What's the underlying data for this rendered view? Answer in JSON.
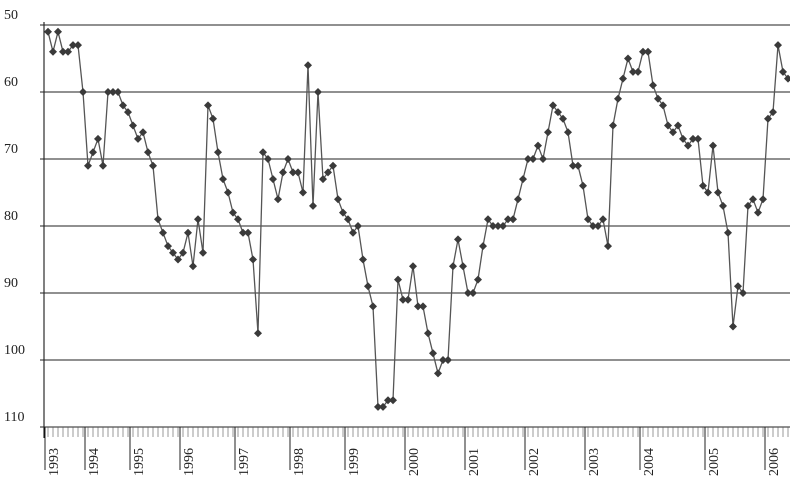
{
  "chart_data": {
    "type": "line",
    "categories": [
      null,
      "1993",
      null,
      null,
      null,
      null,
      null,
      null,
      null,
      "1994",
      null,
      null,
      null,
      null,
      null,
      null,
      null,
      null,
      "1995",
      null,
      null,
      null,
      null,
      null,
      null,
      null,
      null,
      null,
      "1996",
      null,
      null,
      null,
      null,
      null,
      null,
      null,
      null,
      null,
      null,
      "1997",
      null,
      null,
      null,
      null,
      null,
      null,
      null,
      null,
      null,
      null,
      "1998",
      null,
      null,
      null,
      null,
      null,
      null,
      null,
      null,
      null,
      null,
      "1999",
      null,
      null,
      null,
      null,
      null,
      null,
      null,
      null,
      null,
      null,
      null,
      "2000",
      null,
      null,
      null,
      null,
      null,
      null,
      null,
      null,
      null,
      null,
      null,
      "2001",
      null,
      null,
      null,
      null,
      null,
      null,
      null,
      null,
      null,
      null,
      null,
      "2002",
      null,
      null,
      null,
      null,
      null,
      null,
      null,
      null,
      null,
      null,
      null,
      "2003",
      null,
      null,
      null,
      null,
      null,
      null,
      null,
      null,
      null,
      null,
      "2004",
      null,
      null,
      null,
      null,
      null,
      null,
      null,
      null,
      null,
      null,
      null,
      null,
      "2005",
      null,
      null,
      null,
      null,
      null,
      null,
      null,
      null,
      null,
      null,
      null,
      "2006",
      null,
      null,
      null
    ],
    "series": [
      {
        "color": "#555555",
        "values": [
          51,
          54,
          51,
          54,
          54,
          53,
          53,
          60,
          71,
          69,
          67,
          71,
          60,
          60,
          60,
          62,
          63,
          65,
          67,
          66,
          69,
          71,
          79,
          81,
          83,
          84,
          85,
          84,
          81,
          86,
          79,
          84,
          62,
          64,
          69,
          73,
          75,
          78,
          79,
          81,
          81,
          85,
          96,
          69,
          70,
          73,
          76,
          72,
          70,
          72,
          72,
          75,
          56,
          77,
          60,
          73,
          72,
          71,
          76,
          78,
          79,
          81,
          80,
          85,
          89,
          92,
          107,
          107,
          106,
          106,
          88,
          91,
          91,
          86,
          92,
          92,
          96,
          99,
          102,
          100,
          100,
          86,
          82,
          86,
          90,
          90,
          88,
          83,
          79,
          80,
          80,
          80,
          79,
          79,
          76,
          73,
          70,
          70,
          68,
          70,
          66,
          62,
          63,
          64,
          66,
          71,
          71,
          74,
          79,
          80,
          80,
          79,
          83,
          65,
          61,
          58,
          55,
          57,
          57,
          54,
          54,
          59,
          61,
          62,
          65,
          66,
          65,
          67,
          68,
          67,
          67,
          74,
          75,
          68,
          75,
          77,
          81,
          95,
          89,
          90,
          77,
          76,
          78,
          76,
          64,
          63,
          53,
          57,
          58
        ]
      }
    ],
    "ylim": [
      110,
      50
    ],
    "yticks": [
      50,
      60,
      70,
      80,
      90,
      100,
      110
    ],
    "grid": true
  }
}
